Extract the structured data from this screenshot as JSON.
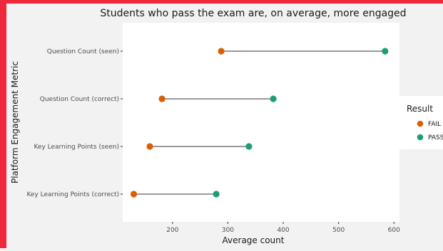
{
  "colors": {
    "frame": "#f0283c",
    "figure_bg": "#f2f2f2",
    "panel_bg": "#ffffff",
    "fail": "#d95f02",
    "pass": "#1b9e77",
    "segment": "#333333",
    "text": "#1a1a1a",
    "tick_text": "#4d4d4d"
  },
  "chart_data": {
    "type": "dumbbell",
    "title": "Students who pass the exam are, on average, more engaged",
    "xlabel": "Average count",
    "ylabel": "Platform Engagement Metric",
    "xlim": [
      110,
      610
    ],
    "xticks": [
      200,
      300,
      400,
      500,
      600
    ],
    "grid": false,
    "legend": {
      "title": "Result",
      "position": "right",
      "entries": [
        "FAIL",
        "PASS"
      ]
    },
    "categories": [
      "Question Count (seen)",
      "Question Count (correct)",
      "Key Learning Points (seen)",
      "Key Learning Points (correct)"
    ],
    "series": [
      {
        "name": "FAIL",
        "values": [
          288,
          181,
          159,
          130
        ]
      },
      {
        "name": "PASS",
        "values": [
          584,
          382,
          338,
          279
        ]
      }
    ]
  }
}
